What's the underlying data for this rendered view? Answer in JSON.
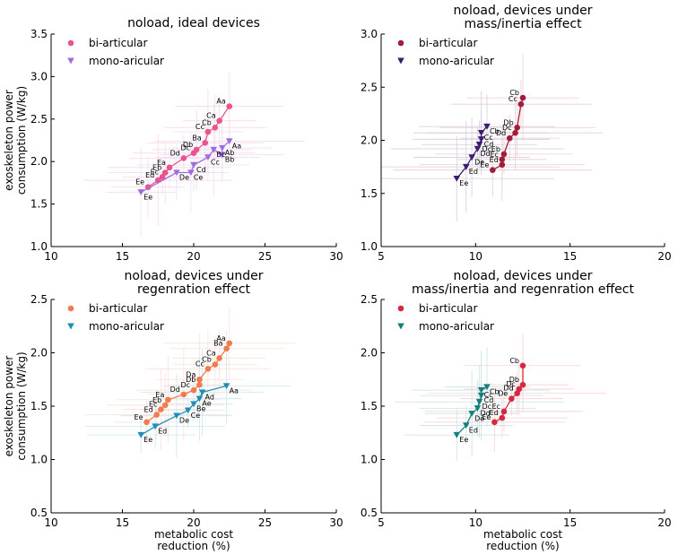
{
  "chart_data": [
    {
      "type": "scatter",
      "title": "noload, ideal devices",
      "xlabel": "",
      "ylabel": "exoskeleton power\nconsumption (W/kg)",
      "xlim": [
        10,
        30
      ],
      "ylim": [
        1.0,
        3.5
      ],
      "xticks": [
        10,
        15,
        20,
        25,
        30
      ],
      "yticks": [
        1.0,
        1.5,
        2.0,
        2.5,
        3.0,
        3.5
      ],
      "legend": "top-left",
      "series": [
        {
          "name": "bi-articular",
          "marker": "circle",
          "color": "#e7548e",
          "points": [
            {
              "x": 22.5,
              "y": 2.65,
              "label": "Aa"
            },
            {
              "x": 21.8,
              "y": 2.48,
              "label": "Ca"
            },
            {
              "x": 21.5,
              "y": 2.4,
              "label": "Cb"
            },
            {
              "x": 21.0,
              "y": 2.35,
              "label": "Cc"
            },
            {
              "x": 20.8,
              "y": 2.22,
              "label": "Ba"
            },
            {
              "x": 20.2,
              "y": 2.14,
              "label": "Db"
            },
            {
              "x": 20.0,
              "y": 2.1,
              "label": "Dc"
            },
            {
              "x": 19.3,
              "y": 2.04,
              "label": "Dd"
            },
            {
              "x": 18.3,
              "y": 1.93,
              "label": "Ea"
            },
            {
              "x": 18.0,
              "y": 1.87,
              "label": "Eb"
            },
            {
              "x": 17.8,
              "y": 1.82,
              "label": "Ec"
            },
            {
              "x": 17.5,
              "y": 1.78,
              "label": "Ed"
            },
            {
              "x": 16.8,
              "y": 1.7,
              "label": "Ee"
            }
          ]
        },
        {
          "name": "mono-aricular",
          "marker": "triangle-down",
          "color": "#a06be0",
          "points": [
            {
              "x": 22.5,
              "y": 2.24,
              "label": "Aa"
            },
            {
              "x": 22.0,
              "y": 2.16,
              "label": "Ab"
            },
            {
              "x": 22.0,
              "y": 2.08,
              "label": "Bb"
            },
            {
              "x": 21.4,
              "y": 2.14,
              "label": "Bc"
            },
            {
              "x": 21.0,
              "y": 2.05,
              "label": "Cc"
            },
            {
              "x": 20.0,
              "y": 1.96,
              "label": "Cd"
            },
            {
              "x": 19.8,
              "y": 1.87,
              "label": "Ce"
            },
            {
              "x": 18.8,
              "y": 1.87,
              "label": "De"
            },
            {
              "x": 16.3,
              "y": 1.64,
              "label": "Ee"
            }
          ]
        }
      ]
    },
    {
      "type": "scatter",
      "title": "noload, devices under\nmass/inertia effect",
      "xlabel": "",
      "ylabel": "",
      "xlim": [
        5,
        20
      ],
      "ylim": [
        1.0,
        3.0
      ],
      "xticks": [
        5,
        10,
        15,
        20
      ],
      "yticks": [
        1.0,
        1.5,
        2.0,
        2.5,
        3.0
      ],
      "legend": "top-left",
      "series": [
        {
          "name": "bi-articular",
          "marker": "circle",
          "color": "#a51c3a",
          "points": [
            {
              "x": 12.5,
              "y": 2.4,
              "label": "Cb"
            },
            {
              "x": 12.4,
              "y": 2.34,
              "label": "Cc"
            },
            {
              "x": 12.2,
              "y": 2.12,
              "label": "Db"
            },
            {
              "x": 12.1,
              "y": 2.07,
              "label": "Dc"
            },
            {
              "x": 11.8,
              "y": 2.02,
              "label": "Dd"
            },
            {
              "x": 11.5,
              "y": 1.87,
              "label": "Eb"
            },
            {
              "x": 11.4,
              "y": 1.82,
              "label": "Ec"
            },
            {
              "x": 11.4,
              "y": 1.77,
              "label": "Ed"
            },
            {
              "x": 10.9,
              "y": 1.72,
              "label": "Ee"
            }
          ]
        },
        {
          "name": "mono-aricular",
          "marker": "triangle-down",
          "color": "#3b1c6e",
          "points": [
            {
              "x": 10.6,
              "y": 2.13,
              "label": "Cb"
            },
            {
              "x": 10.3,
              "y": 2.07,
              "label": "Cc"
            },
            {
              "x": 10.3,
              "y": 2.01,
              "label": "Cd"
            },
            {
              "x": 10.2,
              "y": 1.96,
              "label": "Dc"
            },
            {
              "x": 10.1,
              "y": 1.92,
              "label": "Dd"
            },
            {
              "x": 9.8,
              "y": 1.84,
              "label": "De"
            },
            {
              "x": 9.5,
              "y": 1.75,
              "label": "Ed"
            },
            {
              "x": 9.0,
              "y": 1.64,
              "label": "Ee"
            }
          ]
        }
      ]
    },
    {
      "type": "scatter",
      "title": "noload, devices under\nregenration effect",
      "xlabel": "metabolic cost\nreduction (%)",
      "ylabel": "exoskeleton power\nconsumption (W/kg)",
      "xlim": [
        10,
        30
      ],
      "ylim": [
        0.5,
        2.5
      ],
      "xticks": [
        10,
        15,
        20,
        25,
        30
      ],
      "yticks": [
        0.5,
        1.0,
        1.5,
        2.0,
        2.5
      ],
      "legend": "top-left",
      "series": [
        {
          "name": "bi-articular",
          "marker": "circle",
          "color": "#ef7b4e",
          "points": [
            {
              "x": 22.5,
              "y": 2.09,
              "label": "Aa"
            },
            {
              "x": 22.3,
              "y": 2.04,
              "label": "Ba"
            },
            {
              "x": 21.8,
              "y": 1.95,
              "label": "Ca"
            },
            {
              "x": 21.5,
              "y": 1.89,
              "label": "Cb"
            },
            {
              "x": 21.0,
              "y": 1.85,
              "label": "Cc"
            },
            {
              "x": 20.4,
              "y": 1.75,
              "label": "Da"
            },
            {
              "x": 20.4,
              "y": 1.7,
              "label": "Db"
            },
            {
              "x": 20.0,
              "y": 1.65,
              "label": "Dc"
            },
            {
              "x": 19.3,
              "y": 1.61,
              "label": "Dd"
            },
            {
              "x": 18.2,
              "y": 1.56,
              "label": "Ea"
            },
            {
              "x": 18.0,
              "y": 1.51,
              "label": "Eb"
            },
            {
              "x": 17.7,
              "y": 1.47,
              "label": "Ec"
            },
            {
              "x": 17.4,
              "y": 1.42,
              "label": "Ed"
            },
            {
              "x": 16.7,
              "y": 1.35,
              "label": "Ee"
            }
          ]
        },
        {
          "name": "mono-aricular",
          "marker": "triangle-down",
          "color": "#1d8fb5",
          "points": [
            {
              "x": 22.3,
              "y": 1.69,
              "label": "Aa"
            },
            {
              "x": 20.6,
              "y": 1.63,
              "label": "Ad"
            },
            {
              "x": 20.4,
              "y": 1.57,
              "label": "Ae"
            },
            {
              "x": 20.0,
              "y": 1.52,
              "label": "Be"
            },
            {
              "x": 19.6,
              "y": 1.46,
              "label": "Ce"
            },
            {
              "x": 18.8,
              "y": 1.41,
              "label": "De"
            },
            {
              "x": 17.3,
              "y": 1.31,
              "label": "Ed"
            },
            {
              "x": 16.3,
              "y": 1.23,
              "label": "Ee"
            }
          ]
        }
      ]
    },
    {
      "type": "scatter",
      "title": "noload, devices under\nmass/inertia and regenration effect",
      "xlabel": "metabolic cost\nreduction (%)",
      "ylabel": "",
      "xlim": [
        5,
        20
      ],
      "ylim": [
        0.5,
        2.5
      ],
      "xticks": [
        5,
        10,
        15,
        20
      ],
      "yticks": [
        0.5,
        1.0,
        1.5,
        2.0,
        2.5
      ],
      "legend": "top-left",
      "series": [
        {
          "name": "bi-articular",
          "marker": "circle",
          "color": "#d7283f",
          "points": [
            {
              "x": 12.5,
              "y": 1.88,
              "label": "Cb"
            },
            {
              "x": 12.5,
              "y": 1.7,
              "label": "Db"
            },
            {
              "x": 12.3,
              "y": 1.66,
              "label": "Dc"
            },
            {
              "x": 12.2,
              "y": 1.62,
              "label": "Dd"
            },
            {
              "x": 11.9,
              "y": 1.57,
              "label": "De"
            },
            {
              "x": 11.5,
              "y": 1.45,
              "label": "Ec"
            },
            {
              "x": 11.4,
              "y": 1.39,
              "label": "Ed"
            },
            {
              "x": 11.0,
              "y": 1.35,
              "label": "Ee"
            }
          ]
        },
        {
          "name": "mono-aricular",
          "marker": "triangle-down",
          "color": "#14807e",
          "points": [
            {
              "x": 10.6,
              "y": 1.68,
              "label": "Cb"
            },
            {
              "x": 10.3,
              "y": 1.65,
              "label": "Cc"
            },
            {
              "x": 10.3,
              "y": 1.6,
              "label": "Cd"
            },
            {
              "x": 10.2,
              "y": 1.54,
              "label": "Dc"
            },
            {
              "x": 10.1,
              "y": 1.48,
              "label": "Dd"
            },
            {
              "x": 9.8,
              "y": 1.43,
              "label": "De"
            },
            {
              "x": 9.5,
              "y": 1.32,
              "label": "Ed"
            },
            {
              "x": 9.0,
              "y": 1.23,
              "label": "Ee"
            }
          ]
        }
      ]
    }
  ]
}
